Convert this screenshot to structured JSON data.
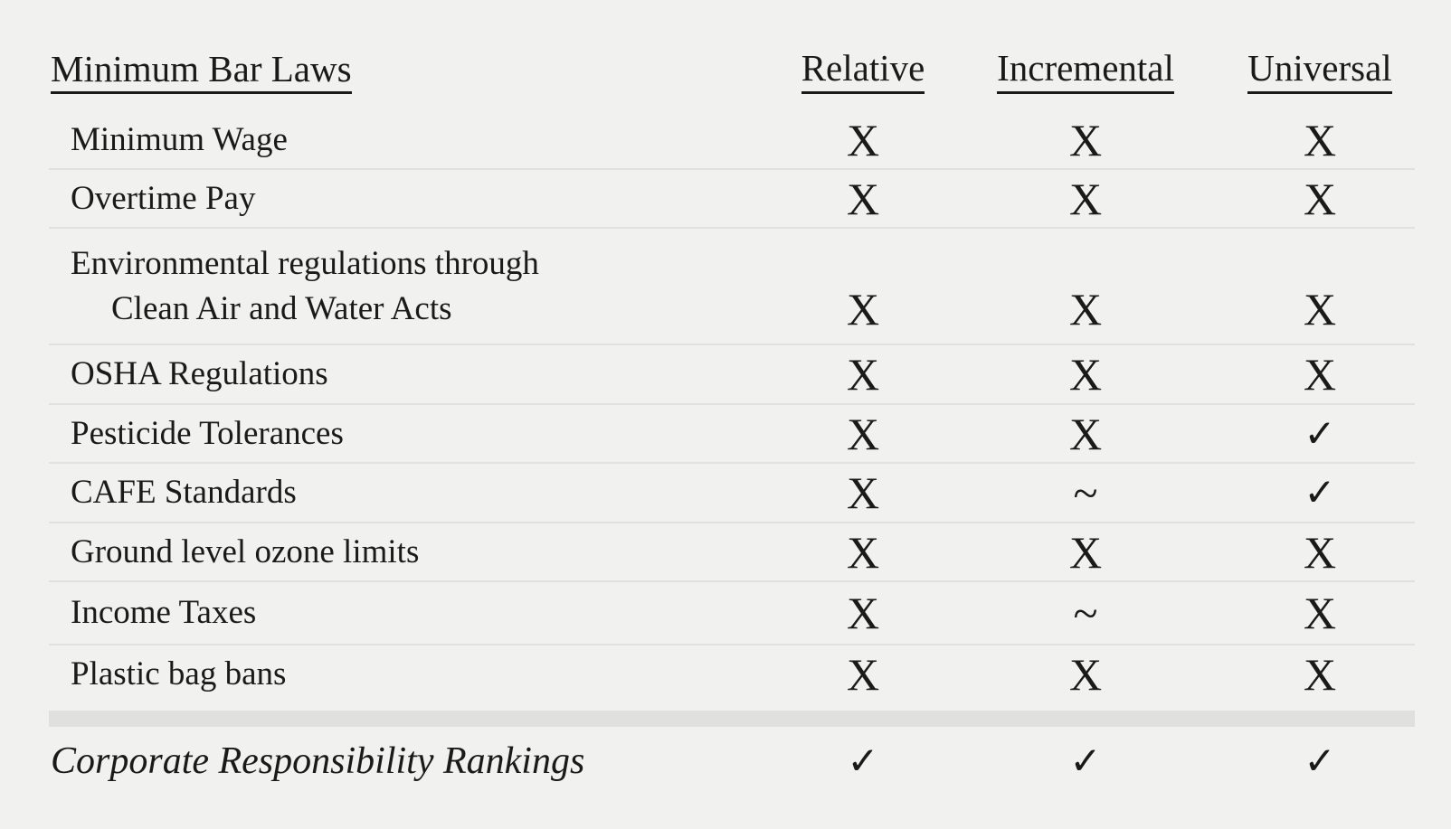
{
  "table": {
    "title": "Minimum Bar Laws",
    "columns": [
      "Relative",
      "Incremental",
      "Universal"
    ],
    "rows": [
      {
        "label": "Minimum Wage",
        "marks": [
          "X",
          "X",
          "X"
        ]
      },
      {
        "label": "Overtime Pay",
        "marks": [
          "X",
          "X",
          "X"
        ]
      },
      {
        "label": "Environmental regulations through",
        "label2": "Clean Air and Water Acts",
        "marks": [
          "X",
          "X",
          "X"
        ]
      },
      {
        "label": "OSHA Regulations",
        "marks": [
          "X",
          "X",
          "X"
        ]
      },
      {
        "label": "Pesticide Tolerances",
        "marks": [
          "X",
          "X",
          "✓"
        ]
      },
      {
        "label": "CAFE Standards",
        "marks": [
          "X",
          "~",
          "✓"
        ]
      },
      {
        "label": "Ground level ozone limits",
        "marks": [
          "X",
          "X",
          "X"
        ]
      },
      {
        "label": "Income Taxes",
        "marks": [
          "X",
          "~",
          "X"
        ]
      },
      {
        "label": "Plastic bag bans",
        "marks": [
          "X",
          "X",
          "X"
        ]
      }
    ],
    "footer": {
      "label": "Corporate Responsibility Rankings",
      "marks": [
        "✓",
        "✓",
        "✓"
      ]
    }
  },
  "colors": {
    "background": "#f1f1f0",
    "divider": "#e1e1df",
    "separator_band": "#e0e0de",
    "text": "#1a1a19"
  }
}
